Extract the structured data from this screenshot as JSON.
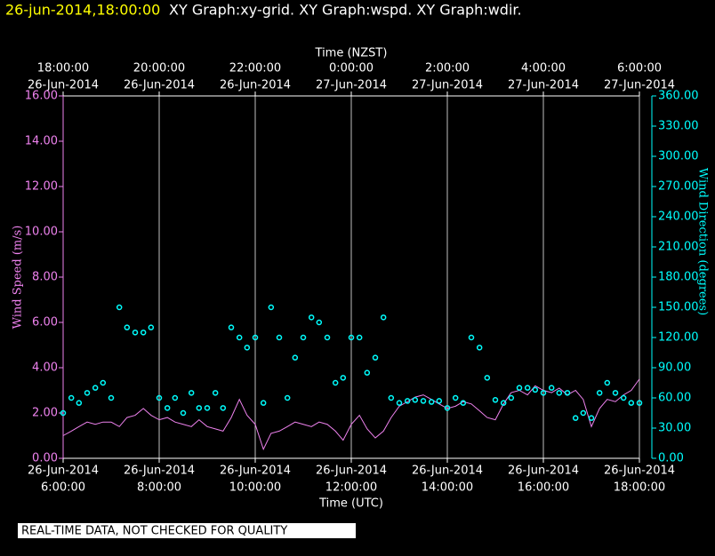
{
  "chart_data": {
    "type": "line",
    "title": "26-jun-2014,18:00:00",
    "subtitle": "XY Graph:xy-grid.  XY Graph:wspd.  XY Graph:wdir.",
    "xlabel": "Time (UTC)",
    "x2label": "Time (NZST)",
    "ylabel": "Wind Speed (m/s)",
    "y2label": "Wind Direction (degrees)",
    "note": "REAL-TIME DATA, NOT CHECKED FOR QUALITY",
    "grid": true,
    "xlim": [
      6,
      18
    ],
    "ylim": [
      0,
      16
    ],
    "y2lim": [
      0,
      360
    ],
    "xticks": [
      {
        "value": 6,
        "label": "6:00:00",
        "date": "26-Jun-2014"
      },
      {
        "value": 8,
        "label": "8:00:00",
        "date": "26-Jun-2014"
      },
      {
        "value": 10,
        "label": "10:00:00",
        "date": "26-Jun-2014"
      },
      {
        "value": 12,
        "label": "12:00:00",
        "date": "26-Jun-2014"
      },
      {
        "value": 14,
        "label": "14:00:00",
        "date": "26-Jun-2014"
      },
      {
        "value": 16,
        "label": "16:00:00",
        "date": "26-Jun-2014"
      },
      {
        "value": 18,
        "label": "18:00:00",
        "date": "26-Jun-2014"
      }
    ],
    "x2ticks": [
      {
        "value": 6,
        "label": "18:00:00",
        "date": "26-Jun-2014"
      },
      {
        "value": 8,
        "label": "20:00:00",
        "date": "26-Jun-2014"
      },
      {
        "value": 10,
        "label": "22:00:00",
        "date": "26-Jun-2014"
      },
      {
        "value": 12,
        "label": "0:00:00",
        "date": "27-Jun-2014"
      },
      {
        "value": 14,
        "label": "2:00:00",
        "date": "27-Jun-2014"
      },
      {
        "value": 16,
        "label": "4:00:00",
        "date": "27-Jun-2014"
      },
      {
        "value": 18,
        "label": "6:00:00",
        "date": "27-Jun-2014"
      }
    ],
    "yticks": [
      {
        "value": 0,
        "label": "0.00"
      },
      {
        "value": 2,
        "label": "2.00"
      },
      {
        "value": 4,
        "label": "4.00"
      },
      {
        "value": 6,
        "label": "6.00"
      },
      {
        "value": 8,
        "label": "8.00"
      },
      {
        "value": 10,
        "label": "10.00"
      },
      {
        "value": 12,
        "label": "12.00"
      },
      {
        "value": 14,
        "label": "14.00"
      },
      {
        "value": 16,
        "label": "16.00"
      }
    ],
    "y2ticks": [
      {
        "value": 0,
        "label": "0.00"
      },
      {
        "value": 30,
        "label": "30.00"
      },
      {
        "value": 60,
        "label": "60.00"
      },
      {
        "value": 90,
        "label": "90.00"
      },
      {
        "value": 120,
        "label": "120.00"
      },
      {
        "value": 150,
        "label": "150.00"
      },
      {
        "value": 180,
        "label": "180.00"
      },
      {
        "value": 210,
        "label": "210.00"
      },
      {
        "value": 240,
        "label": "240.00"
      },
      {
        "value": 270,
        "label": "270.00"
      },
      {
        "value": 300,
        "label": "300.00"
      },
      {
        "value": 330,
        "label": "330.00"
      },
      {
        "value": 360,
        "label": "360.00"
      }
    ],
    "x": [
      6,
      6.17,
      6.33,
      6.5,
      6.67,
      6.83,
      7,
      7.17,
      7.33,
      7.5,
      7.67,
      7.83,
      8,
      8.17,
      8.33,
      8.5,
      8.67,
      8.83,
      9,
      9.17,
      9.33,
      9.5,
      9.67,
      9.83,
      10,
      10.17,
      10.33,
      10.5,
      10.67,
      10.83,
      11,
      11.17,
      11.33,
      11.5,
      11.67,
      11.83,
      12,
      12.17,
      12.33,
      12.5,
      12.67,
      12.83,
      13,
      13.17,
      13.33,
      13.5,
      13.67,
      13.83,
      14,
      14.17,
      14.33,
      14.5,
      14.67,
      14.83,
      15,
      15.17,
      15.33,
      15.5,
      15.67,
      15.83,
      16,
      16.17,
      16.33,
      16.5,
      16.67,
      16.83,
      17,
      17.17,
      17.33,
      17.5,
      17.67,
      17.83,
      18
    ],
    "series": [
      {
        "color": "#ee82ee",
        "style": "line",
        "values": [
          1.0,
          1.2,
          1.4,
          1.6,
          1.5,
          1.6,
          1.6,
          1.4,
          1.8,
          1.9,
          2.2,
          1.9,
          1.7,
          1.8,
          1.6,
          1.5,
          1.4,
          1.7,
          1.4,
          1.3,
          1.2,
          1.8,
          2.6,
          1.9,
          1.5,
          0.4,
          1.1,
          1.2,
          1.4,
          1.6,
          1.5,
          1.4,
          1.6,
          1.5,
          1.2,
          0.8,
          1.5,
          1.9,
          1.3,
          0.9,
          1.2,
          1.8,
          2.3,
          2.5,
          2.7,
          2.8,
          2.6,
          2.4,
          2.2,
          2.3,
          2.5,
          2.4,
          2.1,
          1.8,
          1.7,
          2.4,
          2.9,
          3.0,
          2.8,
          3.2,
          3.0,
          2.9,
          3.1,
          2.8,
          3.0,
          2.6,
          1.4,
          2.2,
          2.6,
          2.5,
          2.8,
          3.0,
          3.5
        ]
      },
      {
        "color": "#00ffff",
        "style": "markers",
        "axis": "y2",
        "values": [
          45,
          60,
          55,
          65,
          70,
          75,
          60,
          150,
          130,
          125,
          125,
          130,
          60,
          50,
          60,
          45,
          65,
          50,
          50,
          65,
          50,
          130,
          120,
          110,
          120,
          55,
          150,
          120,
          60,
          100,
          120,
          140,
          135,
          120,
          75,
          80,
          120,
          120,
          85,
          100,
          140,
          60,
          55,
          57,
          58,
          57,
          56,
          57,
          50,
          60,
          55,
          120,
          110,
          80,
          58,
          55,
          60,
          70,
          70,
          68,
          65,
          70,
          65,
          65,
          40,
          45,
          40,
          65,
          75,
          65,
          60,
          55,
          55
        ]
      }
    ]
  }
}
